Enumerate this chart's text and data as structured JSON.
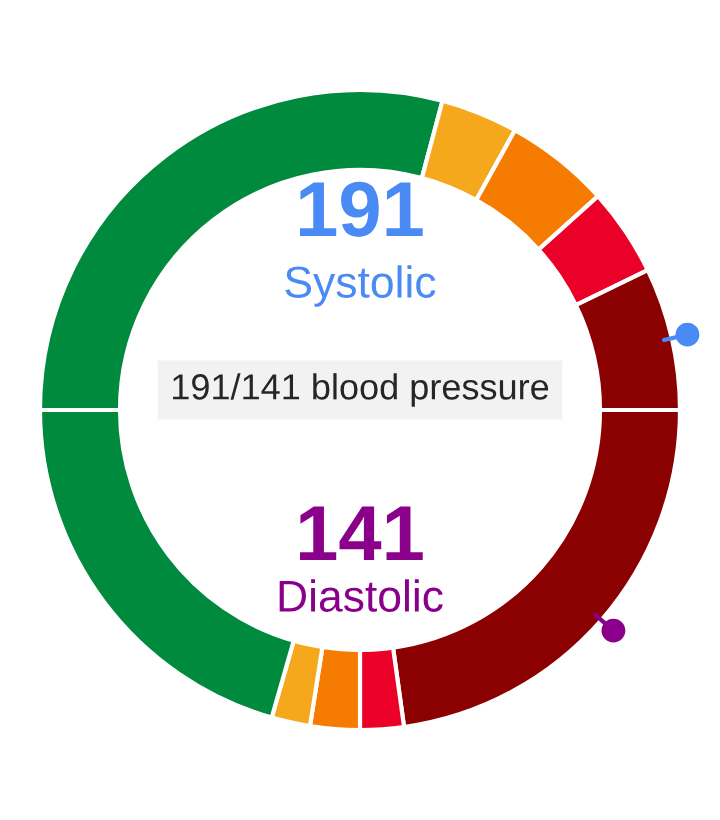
{
  "chart_data": {
    "type": "donut",
    "title": "191/141 blood pressure",
    "annotations": [
      "191",
      "Systolic",
      "141",
      "Diastolic"
    ],
    "categories": [
      null,
      null,
      null,
      null,
      null,
      null,
      null,
      null,
      null,
      null
    ],
    "values": [
      29.15,
      3.9,
      5.3,
      4.45,
      7.2,
      22.8,
      2.2,
      2.5,
      1.95,
      20.55
    ],
    "colors": [
      "#008a3e",
      "#f5a81c",
      "#f57c00",
      "#eb0028",
      "#8b0000",
      "#8b0000",
      "#eb0028",
      "#f57c00",
      "#f5a81c",
      "#008a3e"
    ]
  }
}
